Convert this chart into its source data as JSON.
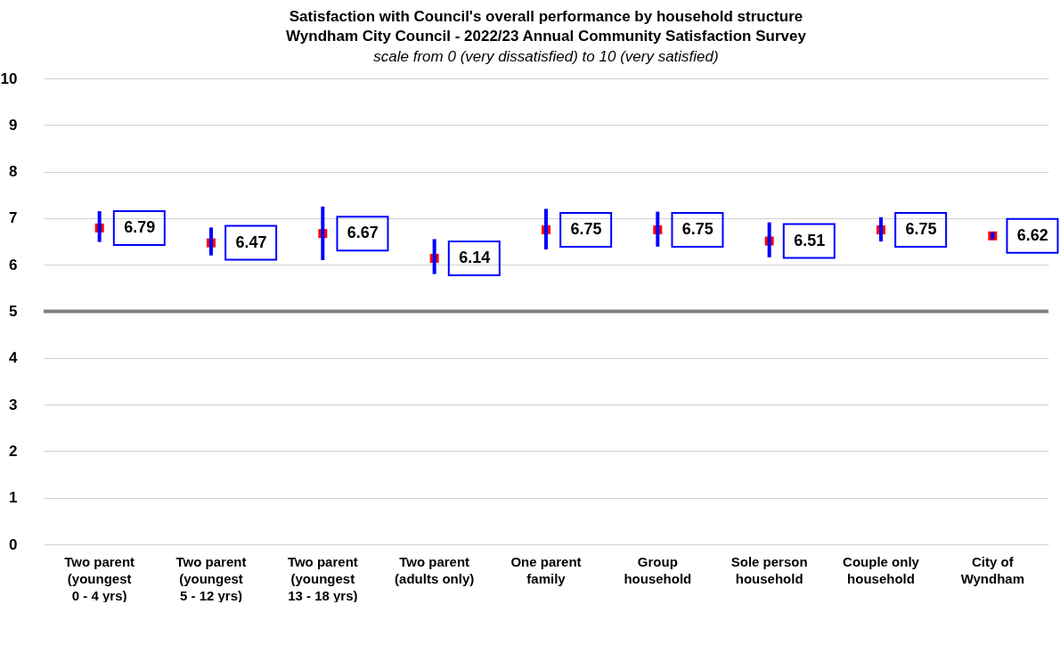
{
  "chart_data": {
    "type": "scatter",
    "title": "Satisfaction with Council's overall performance by household structure\nWyndham City Council - 2022/23 Annual Community Satisfaction Survey",
    "subtitle": "scale from 0 (very dissatisfied) to 10 (very satisfied)",
    "categories": [
      "Two parent (youngest 0 - 4 yrs)",
      "Two parent (youngest 5 - 12 yrs)",
      "Two parent (youngest 13 - 18 yrs)",
      "Two parent (adults only)",
      "One parent family",
      "Group household",
      "Sole person household",
      "Couple only household",
      "City of Wyndham"
    ],
    "series": [
      {
        "color": "#ff0000",
        "values": [
          6.79,
          6.47,
          6.67,
          6.14,
          6.75,
          6.75,
          6.51,
          6.75,
          6.62
        ],
        "errors": [
          [
            6.49,
            7.15
          ],
          [
            6.2,
            6.8
          ],
          [
            6.1,
            7.25
          ],
          [
            5.8,
            6.55
          ],
          [
            6.33,
            7.2
          ],
          [
            6.39,
            7.14
          ],
          [
            6.16,
            6.91
          ],
          [
            6.5,
            7.02
          ],
          [
            6.55,
            6.7
          ]
        ]
      }
    ],
    "ylim": [
      0,
      10
    ],
    "yticks": [
      0,
      1,
      2,
      3,
      4,
      5,
      6,
      7,
      8,
      9,
      10
    ],
    "ref_lines": [
      {
        "axis": "y",
        "value": 5,
        "color": "#808080"
      }
    ],
    "grid": "y",
    "marker": "square",
    "data_labels": true
  }
}
